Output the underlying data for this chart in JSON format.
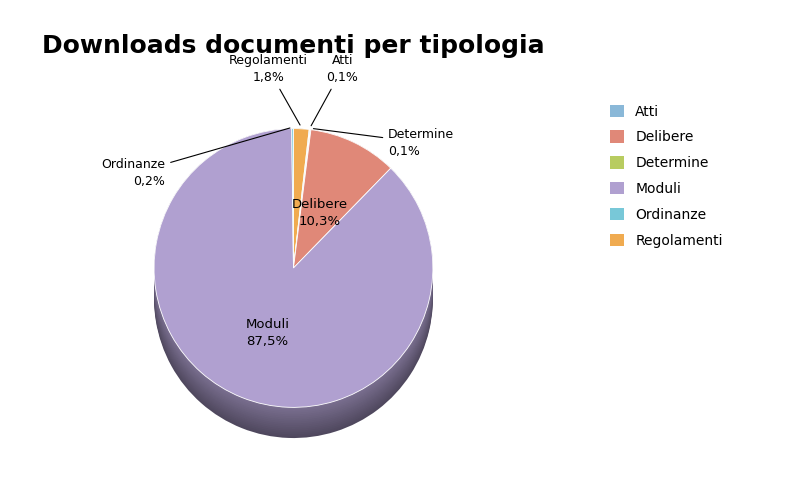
{
  "title": "Downloads documenti per tipologia",
  "title_fontsize": 18,
  "pie_order_labels": [
    "Regolamenti",
    "Atti",
    "Determine",
    "Delibere",
    "Moduli",
    "Ordinanze"
  ],
  "pie_order_values": [
    1.8,
    0.1,
    0.1,
    10.3,
    87.5,
    0.2
  ],
  "pie_order_colors": [
    "#f0ab50",
    "#8ab8d8",
    "#b8cc60",
    "#e08878",
    "#b0a0d0",
    "#78c8d8"
  ],
  "pie_depth_colors": [
    "#a06820",
    "#3060a0",
    "#607820",
    "#904040",
    "#604878",
    "#208898"
  ],
  "legend_labels": [
    "Atti",
    "Delibere",
    "Determine",
    "Moduli",
    "Ordinanze",
    "Regolamenti"
  ],
  "legend_colors": [
    "#8ab8d8",
    "#e08878",
    "#b8cc60",
    "#b0a0d0",
    "#78c8d8",
    "#f0ab50"
  ],
  "startangle": 90,
  "label_fontsize": 9,
  "legend_fontsize": 10,
  "background_color": "#ffffff"
}
